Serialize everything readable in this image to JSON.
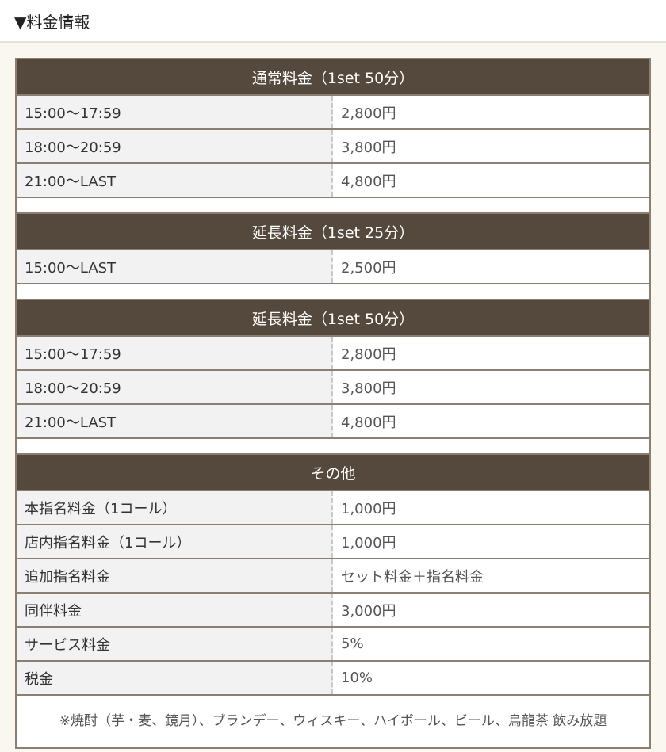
{
  "header": {
    "title": "▼料金情報"
  },
  "sections": [
    {
      "title": "通常料金（1set 50分）",
      "rows": [
        [
          "15:00～17:59",
          "2,800円"
        ],
        [
          "18:00～20:59",
          "3,800円"
        ],
        [
          "21:00～LAST",
          "4,800円"
        ]
      ]
    },
    {
      "title": "延長料金（1set 25分）",
      "rows": [
        [
          "15:00～LAST",
          "2,500円"
        ]
      ]
    },
    {
      "title": "延長料金（1set 50分）",
      "rows": [
        [
          "15:00～17:59",
          "2,800円"
        ],
        [
          "18:00～20:59",
          "3,800円"
        ],
        [
          "21:00～LAST",
          "4,800円"
        ]
      ]
    },
    {
      "title": "その他",
      "rows": [
        [
          "本指名料金（1コール）",
          "1,000円"
        ],
        [
          "店内指名料金（1コール）",
          "1,000円"
        ],
        [
          "追加指名料金",
          "セット料金＋指名料金"
        ],
        [
          "同伴料金",
          "3,000円"
        ],
        [
          "サービス料金",
          "5%"
        ],
        [
          "税金",
          "10%"
        ]
      ]
    }
  ],
  "note": "※焼酎（芋・麦、鏡月）、ブランデー、ウィスキー、ハイボール、ビール、烏龍茶 飲み放題",
  "colors": {
    "header_bg": "#54493c",
    "border": "#8a7f70",
    "page_bg": "#faf7f0"
  }
}
